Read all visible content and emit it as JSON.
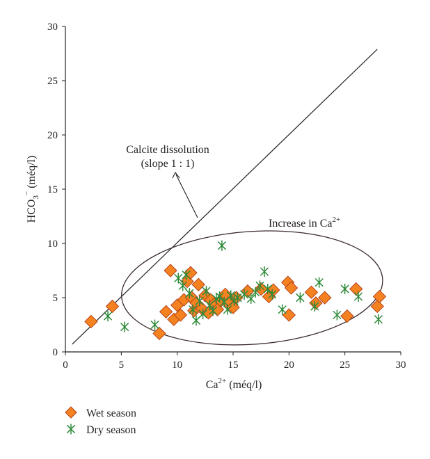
{
  "chart_data": {
    "type": "scatter",
    "xlabel": {
      "base": "Ca",
      "sup": "2+",
      "unit": " (méq/l)"
    },
    "ylabel": {
      "base": "HCO",
      "sub": "3",
      "sup": "−",
      "unit": " (méq/l)"
    },
    "xlim": [
      0,
      30
    ],
    "ylim": [
      0,
      30
    ],
    "xticks": [
      "0",
      "5",
      "10",
      "15",
      "20",
      "25",
      "30"
    ],
    "yticks": [
      "0",
      "5",
      "10",
      "15",
      "20",
      "25",
      "30"
    ],
    "grid": false,
    "legend_position": "bottom-left",
    "reference_line": {
      "x": [
        0.6,
        27.9
      ],
      "y": [
        0.7,
        27.9
      ]
    },
    "annotations": {
      "calcite_line1": "Calcite dissolution",
      "calcite_line2": "(slope 1 : 1)",
      "increase_base": "Increase in Ca",
      "increase_sup": "2+"
    },
    "ellipse": {
      "cx": 16.7,
      "cy": 5.9,
      "rx": 11.7,
      "ry": 5.2,
      "rotation_deg": -4
    },
    "series": [
      {
        "name": "Wet season",
        "marker": "diamond",
        "color": "#f58220",
        "stroke": "#b5441a",
        "points": [
          [
            2.3,
            2.8
          ],
          [
            4.2,
            4.2
          ],
          [
            8.4,
            1.7
          ],
          [
            9.0,
            3.7
          ],
          [
            9.4,
            7.5
          ],
          [
            9.7,
            3.0
          ],
          [
            10.0,
            4.3
          ],
          [
            10.3,
            3.4
          ],
          [
            10.6,
            4.8
          ],
          [
            10.9,
            6.5
          ],
          [
            11.2,
            7.3
          ],
          [
            11.3,
            5.0
          ],
          [
            11.5,
            3.8
          ],
          [
            11.7,
            4.5
          ],
          [
            11.9,
            6.2
          ],
          [
            12.2,
            4.0
          ],
          [
            12.5,
            5.2
          ],
          [
            12.8,
            3.6
          ],
          [
            13.0,
            4.8
          ],
          [
            13.3,
            4.4
          ],
          [
            13.6,
            3.9
          ],
          [
            13.9,
            4.7
          ],
          [
            14.3,
            5.3
          ],
          [
            14.6,
            4.5
          ],
          [
            15.0,
            4.1
          ],
          [
            15.3,
            5.0
          ],
          [
            16.3,
            5.6
          ],
          [
            17.5,
            5.8
          ],
          [
            18.2,
            5.1
          ],
          [
            18.6,
            5.7
          ],
          [
            19.9,
            6.4
          ],
          [
            20.0,
            3.4
          ],
          [
            20.2,
            5.9
          ],
          [
            22.0,
            5.5
          ],
          [
            22.4,
            4.5
          ],
          [
            23.2,
            5.0
          ],
          [
            25.2,
            3.3
          ],
          [
            26.0,
            5.8
          ],
          [
            27.9,
            4.2
          ],
          [
            28.1,
            5.1
          ]
        ]
      },
      {
        "name": "Dry season",
        "marker": "asterisk",
        "color": "#2e8b3a",
        "points": [
          [
            3.8,
            3.3
          ],
          [
            5.3,
            2.3
          ],
          [
            8.0,
            2.5
          ],
          [
            10.1,
            6.8
          ],
          [
            10.5,
            6.1
          ],
          [
            10.8,
            7.1
          ],
          [
            11.1,
            5.4
          ],
          [
            11.4,
            3.9
          ],
          [
            11.7,
            2.9
          ],
          [
            12.0,
            4.7
          ],
          [
            12.3,
            3.5
          ],
          [
            12.6,
            5.6
          ],
          [
            12.9,
            4.3
          ],
          [
            13.2,
            3.8
          ],
          [
            13.5,
            4.9
          ],
          [
            13.8,
            5.1
          ],
          [
            14.0,
            9.8
          ],
          [
            14.2,
            4.6
          ],
          [
            14.5,
            3.9
          ],
          [
            14.8,
            5.2
          ],
          [
            15.1,
            4.7
          ],
          [
            15.4,
            5.0
          ],
          [
            16.0,
            5.3
          ],
          [
            16.6,
            4.9
          ],
          [
            17.0,
            5.5
          ],
          [
            17.4,
            6.1
          ],
          [
            17.8,
            7.4
          ],
          [
            18.1,
            5.8
          ],
          [
            18.5,
            5.3
          ],
          [
            19.4,
            3.9
          ],
          [
            21.0,
            5.0
          ],
          [
            22.3,
            4.2
          ],
          [
            22.7,
            6.4
          ],
          [
            24.3,
            3.4
          ],
          [
            25.0,
            5.8
          ],
          [
            26.2,
            5.1
          ],
          [
            28.0,
            3.0
          ]
        ]
      }
    ]
  }
}
